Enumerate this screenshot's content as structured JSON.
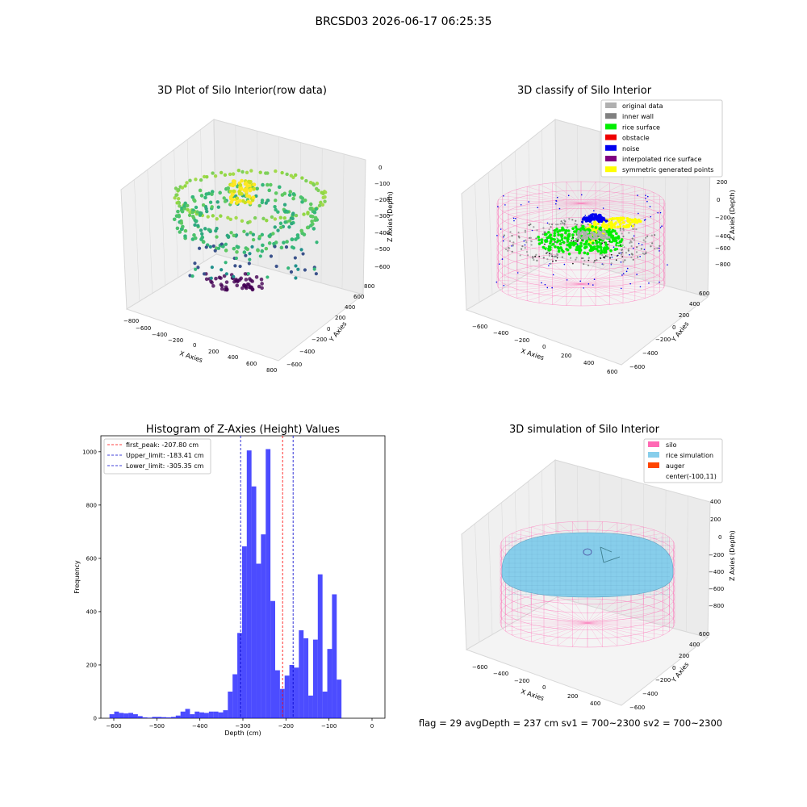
{
  "figure": {
    "suptitle": "BRCSD03 2026-06-17 06:25:35",
    "footer": "flag = 29  avgDepth = 237 cm  sv1 = 700~2300  sv2 = 700~2300"
  },
  "panels": {
    "raw": {
      "title": "3D Plot of Silo Interior(row data)",
      "xlabel": "X Axies",
      "ylabel": "Y Axies",
      "zlabel": "Z Axies (Depth)",
      "xticks": [
        "−800",
        "−600",
        "−400",
        "−200",
        "0",
        "200",
        "400",
        "600",
        "800"
      ],
      "yticks": [
        "−600",
        "−400",
        "−200",
        "0",
        "200",
        "400",
        "600",
        "800"
      ],
      "zticks": [
        "0",
        "−100",
        "−200",
        "−300",
        "−400",
        "−500",
        "−600"
      ]
    },
    "classify": {
      "title": "3D classify of Silo Interior",
      "xlabel": "X Axies",
      "ylabel": "Y Axies",
      "zlabel": "Z Axies (Depth)",
      "xticks": [
        "−600",
        "−400",
        "−200",
        "0",
        "200",
        "400",
        "600"
      ],
      "yticks": [
        "−600",
        "−400",
        "−200",
        "0",
        "200",
        "400",
        "600"
      ],
      "zticks": [
        "200",
        "0",
        "−200",
        "−400",
        "−600",
        "−800"
      ],
      "legend": [
        {
          "label": "original data",
          "color": "#b0b0b0"
        },
        {
          "label": "inner wall",
          "color": "#808080"
        },
        {
          "label": "rice surface",
          "color": "#00ee00"
        },
        {
          "label": "obstacle",
          "color": "#ee0000"
        },
        {
          "label": "noise",
          "color": "#0000ee"
        },
        {
          "label": "interpolated rice surface",
          "color": "#800080"
        },
        {
          "label": "symmetric generated points",
          "color": "#ffff00"
        }
      ]
    },
    "simulation": {
      "title": "3D simulation of Silo Interior",
      "xlabel": "X Axies",
      "ylabel": "Y Axies",
      "zlabel": "Z Axies (Depth)",
      "xticks": [
        "−600",
        "−400",
        "−200",
        "0",
        "200",
        "400"
      ],
      "yticks": [
        "−600",
        "−400",
        "−200",
        "0",
        "200",
        "400",
        "600"
      ],
      "zticks": [
        "400",
        "200",
        "0",
        "−200",
        "−400",
        "−600",
        "−800"
      ],
      "legend": [
        {
          "label": "silo",
          "color": "#ff69b4"
        },
        {
          "label": "rice simulation",
          "color": "#87ceeb"
        },
        {
          "label": "auger",
          "color": "#ff4500"
        },
        {
          "label": "center(-100,11)",
          "color": ""
        }
      ]
    }
  },
  "chart_data": {
    "type": "bar",
    "title": "Histogram of Z-Axies (Height) Values",
    "xlabel": "Depth (cm)",
    "ylabel": "Frequency",
    "xlim": [
      -630,
      30
    ],
    "ylim": [
      0,
      1060
    ],
    "xticks": [
      -600,
      -500,
      -400,
      -300,
      -200,
      -100,
      0
    ],
    "yticks": [
      0,
      200,
      400,
      600,
      800,
      1000
    ],
    "bin_width": 11,
    "bin_starts": [
      -610,
      -599,
      -588,
      -577,
      -566,
      -555,
      -544,
      -533,
      -522,
      -511,
      -500,
      -489,
      -478,
      -467,
      -456,
      -445,
      -434,
      -423,
      -412,
      -401,
      -390,
      -379,
      -368,
      -357,
      -346,
      -335,
      -324,
      -313,
      -302,
      -291,
      -280,
      -269,
      -258,
      -247,
      -236,
      -225,
      -214,
      -203,
      -192,
      -181,
      -170,
      -159,
      -148,
      -137,
      -126,
      -115,
      -104,
      -93,
      -82,
      -71,
      -60,
      -49,
      -38,
      -27,
      -16
    ],
    "counts": [
      15,
      25,
      20,
      18,
      20,
      15,
      8,
      3,
      2,
      5,
      5,
      4,
      3,
      5,
      10,
      25,
      35,
      15,
      25,
      22,
      20,
      25,
      25,
      22,
      30,
      100,
      165,
      320,
      645,
      1005,
      870,
      580,
      690,
      1010,
      440,
      180,
      110,
      160,
      200,
      190,
      330,
      300,
      85,
      295,
      540,
      100,
      260,
      465,
      145,
      0,
      0,
      0,
      0,
      0,
      0
    ],
    "reference_lines": [
      {
        "label": "first_peak: -207.80 cm",
        "value": -207.8,
        "color": "#ff0000"
      },
      {
        "label": "Upper_limit: -183.41 cm",
        "value": -183.41,
        "color": "#0000cc"
      },
      {
        "label": "Lower_limit: -305.35 cm",
        "value": -305.35,
        "color": "#0000cc"
      }
    ],
    "bar_color": "#0000ff"
  }
}
